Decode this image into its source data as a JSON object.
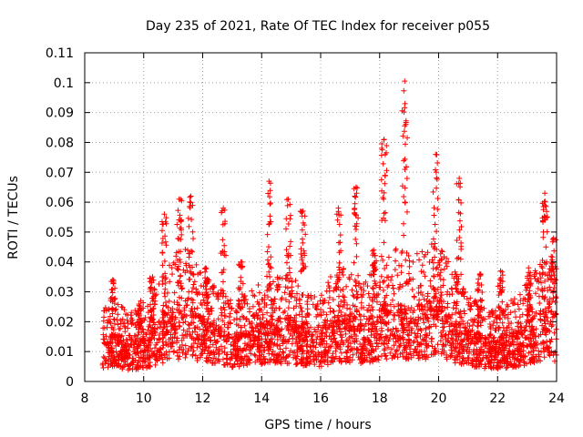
{
  "chart_data": {
    "type": "scatter",
    "title": "Day 235 of 2021, Rate Of TEC Index for receiver p055",
    "xlabel": "GPS time / hours",
    "ylabel": "ROTI / TECUs",
    "xlim": [
      8,
      24
    ],
    "ylim": [
      0,
      0.11
    ],
    "xticks": [
      8,
      10,
      12,
      14,
      16,
      18,
      20,
      22,
      24
    ],
    "xtick_labels": [
      "8",
      "10",
      "12",
      "14",
      "16",
      "18",
      "20",
      "22",
      "24"
    ],
    "yticks": [
      0,
      0.01,
      0.02,
      0.03,
      0.04,
      0.05,
      0.06,
      0.07,
      0.08,
      0.09,
      0.1,
      0.11
    ],
    "ytick_labels": [
      "0",
      "0.01",
      "0.02",
      "0.03",
      "0.04",
      "0.05",
      "0.06",
      "0.07",
      "0.08",
      "0.09",
      "0.1",
      "0.11"
    ],
    "grid": true,
    "marker": "+",
    "series": [
      {
        "name": "ROTI",
        "color": "#ff0000",
        "baseline_profile": [
          [
            8.6,
            0.012
          ],
          [
            9.0,
            0.013
          ],
          [
            9.5,
            0.011
          ],
          [
            10.0,
            0.012
          ],
          [
            10.5,
            0.016
          ],
          [
            11.0,
            0.02
          ],
          [
            11.5,
            0.022
          ],
          [
            12.0,
            0.017
          ],
          [
            12.5,
            0.015
          ],
          [
            13.0,
            0.013
          ],
          [
            13.5,
            0.014
          ],
          [
            14.0,
            0.016
          ],
          [
            14.5,
            0.017
          ],
          [
            15.0,
            0.017
          ],
          [
            15.5,
            0.014
          ],
          [
            16.0,
            0.014
          ],
          [
            16.5,
            0.018
          ],
          [
            17.0,
            0.018
          ],
          [
            17.5,
            0.016
          ],
          [
            18.0,
            0.021
          ],
          [
            18.5,
            0.022
          ],
          [
            19.0,
            0.02
          ],
          [
            19.5,
            0.021
          ],
          [
            20.0,
            0.023
          ],
          [
            20.5,
            0.018
          ],
          [
            21.0,
            0.014
          ],
          [
            21.5,
            0.012
          ],
          [
            22.0,
            0.012
          ],
          [
            22.5,
            0.013
          ],
          [
            23.0,
            0.016
          ],
          [
            23.5,
            0.02
          ],
          [
            24.0,
            0.018
          ]
        ],
        "spikes": [
          [
            8.95,
            0.034
          ],
          [
            9.9,
            0.027
          ],
          [
            10.3,
            0.035
          ],
          [
            10.7,
            0.056
          ],
          [
            11.2,
            0.061
          ],
          [
            11.6,
            0.062
          ],
          [
            12.1,
            0.038
          ],
          [
            12.7,
            0.058
          ],
          [
            13.3,
            0.04
          ],
          [
            14.25,
            0.067
          ],
          [
            14.9,
            0.061
          ],
          [
            15.4,
            0.057
          ],
          [
            16.6,
            0.058
          ],
          [
            17.2,
            0.065
          ],
          [
            17.8,
            0.044
          ],
          [
            18.15,
            0.081
          ],
          [
            18.85,
            0.1005
          ],
          [
            19.9,
            0.076
          ],
          [
            20.7,
            0.068
          ],
          [
            21.4,
            0.036
          ],
          [
            22.1,
            0.037
          ],
          [
            23.05,
            0.038
          ],
          [
            23.6,
            0.063
          ],
          [
            23.9,
            0.048
          ]
        ]
      }
    ]
  }
}
